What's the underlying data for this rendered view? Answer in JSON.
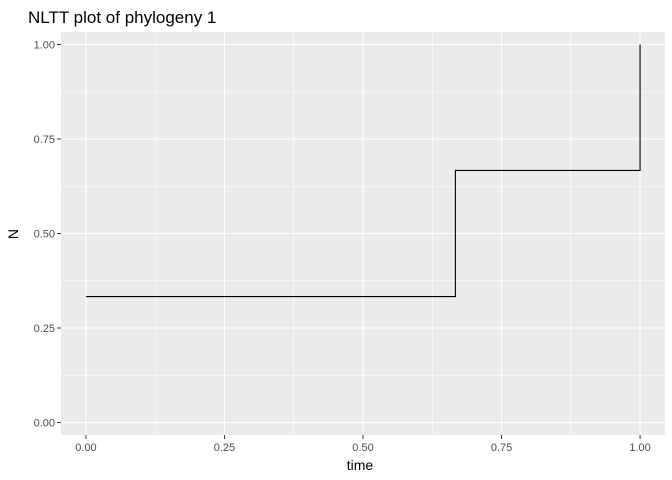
{
  "chart_data": {
    "type": "line",
    "title": "NLTT plot of phylogeny 1",
    "xlabel": "time",
    "ylabel": "N",
    "xlim": [
      -0.045,
      1.045
    ],
    "ylim": [
      -0.033,
      1.033
    ],
    "x_ticks": [
      0,
      0.25,
      0.5,
      0.75,
      1
    ],
    "x_tick_labels": [
      "0.00",
      "0.25",
      "0.50",
      "0.75",
      "1.00"
    ],
    "y_ticks": [
      0,
      0.25,
      0.5,
      0.75,
      1
    ],
    "y_tick_labels": [
      "0.00",
      "0.25",
      "0.50",
      "0.75",
      "1.00"
    ],
    "grid": true,
    "legend": "none",
    "step": true,
    "series": [
      {
        "x": [
          0,
          0.6667,
          1
        ],
        "y": [
          0.3333,
          0.6667,
          1
        ]
      }
    ],
    "colors": {
      "panel": "#ebebeb",
      "grid_major": "#ffffff",
      "line": "#000000",
      "tick_text": "#4d4d4d"
    }
  }
}
